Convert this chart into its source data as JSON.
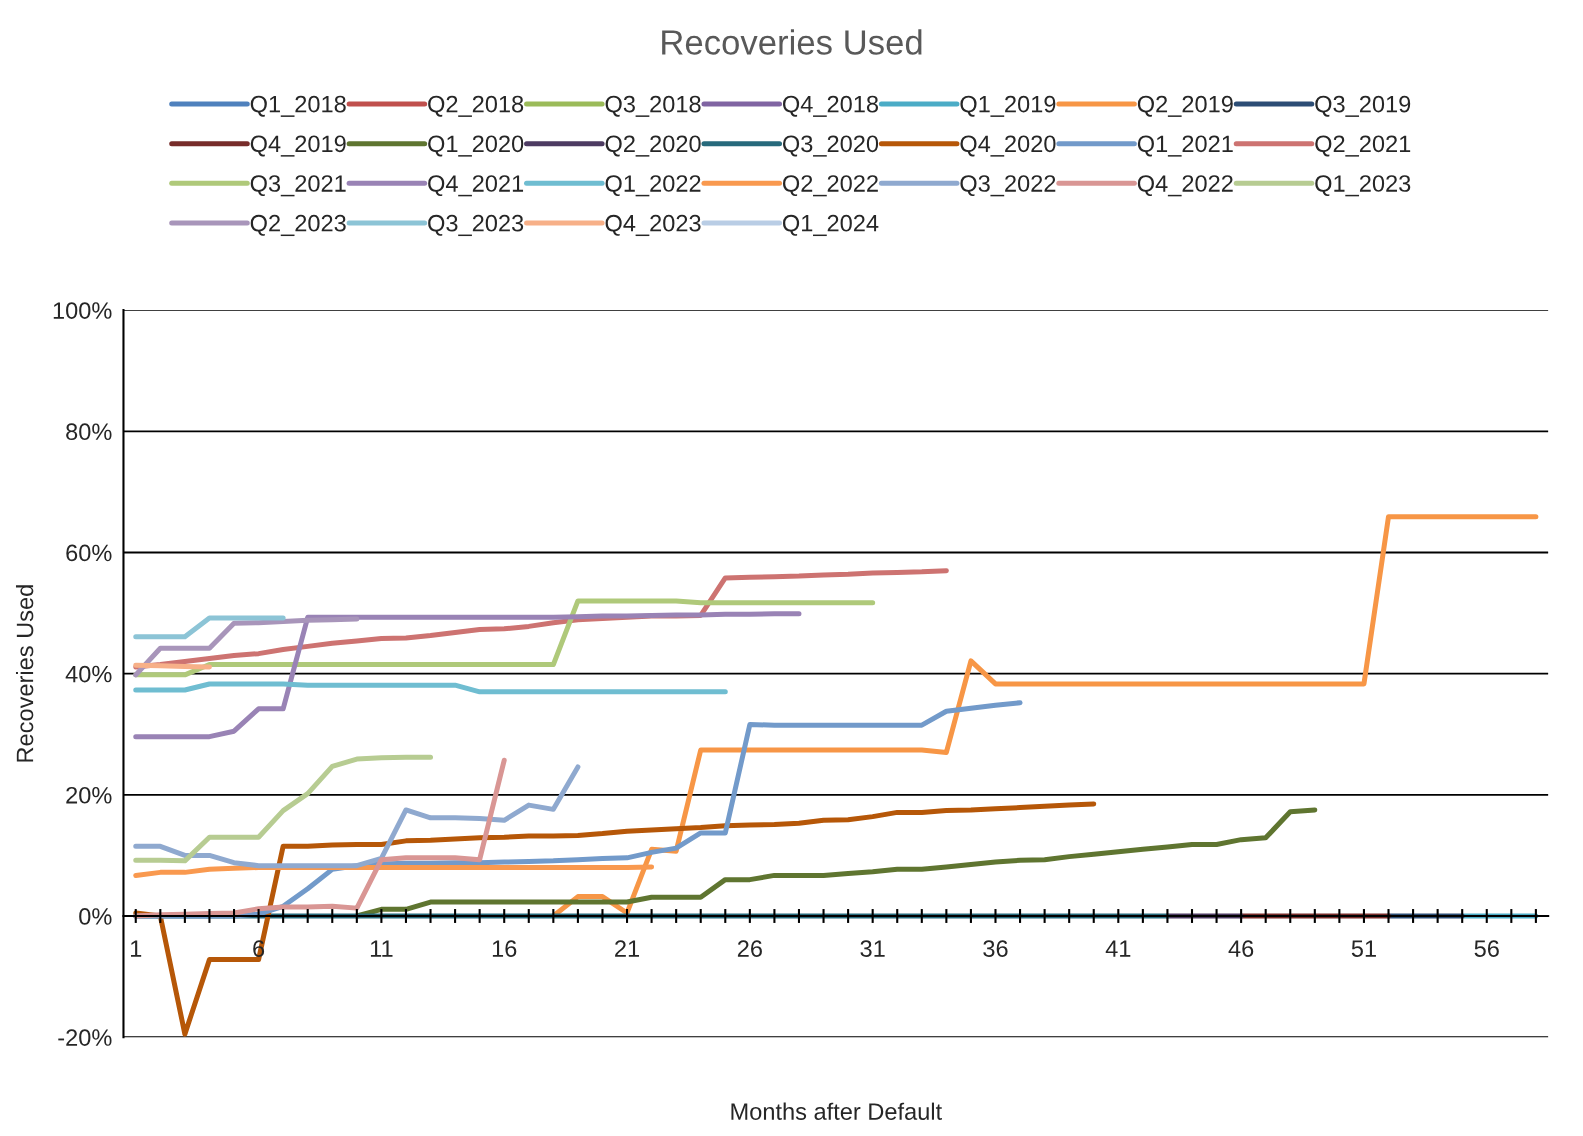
{
  "chart_data": {
    "type": "line",
    "title": "Recoveries Used",
    "xlabel": "Months after Default",
    "ylabel": "Recoveries Used",
    "x": [
      1,
      2,
      3,
      4,
      5,
      6,
      7,
      8,
      9,
      10,
      11,
      12,
      13,
      14,
      15,
      16,
      17,
      18,
      19,
      20,
      21,
      22,
      23,
      24,
      25,
      26,
      27,
      28,
      29,
      30,
      31,
      32,
      33,
      34,
      35,
      36,
      37,
      38,
      39,
      40,
      41,
      42,
      43,
      44,
      45,
      46,
      47,
      48,
      49,
      50,
      51,
      52,
      53,
      54,
      55,
      56,
      57,
      58
    ],
    "xlim": [
      0.5,
      58.5
    ],
    "xticks": [
      1,
      {
        "value": 2,
        "label": null
      },
      {
        "value": 3,
        "label": null
      },
      {
        "value": 4,
        "label": null
      },
      {
        "value": 5,
        "label": null
      },
      6,
      {
        "value": 7,
        "label": null
      },
      {
        "value": 8,
        "label": null
      },
      {
        "value": 9,
        "label": null
      },
      {
        "value": 10,
        "label": null
      },
      11,
      {
        "value": 12,
        "label": null
      },
      {
        "value": 13,
        "label": null
      },
      {
        "value": 14,
        "label": null
      },
      {
        "value": 15,
        "label": null
      },
      16,
      {
        "value": 17,
        "label": null
      },
      {
        "value": 18,
        "label": null
      },
      {
        "value": 19,
        "label": null
      },
      {
        "value": 20,
        "label": null
      },
      21,
      {
        "value": 22,
        "label": null
      },
      {
        "value": 23,
        "label": null
      },
      {
        "value": 24,
        "label": null
      },
      {
        "value": 25,
        "label": null
      },
      26,
      {
        "value": 27,
        "label": null
      },
      {
        "value": 28,
        "label": null
      },
      {
        "value": 29,
        "label": null
      },
      {
        "value": 30,
        "label": null
      },
      31,
      {
        "value": 32,
        "label": null
      },
      {
        "value": 33,
        "label": null
      },
      {
        "value": 34,
        "label": null
      },
      {
        "value": 35,
        "label": null
      },
      36,
      {
        "value": 37,
        "label": null
      },
      {
        "value": 38,
        "label": null
      },
      {
        "value": 39,
        "label": null
      },
      {
        "value": 40,
        "label": null
      },
      41,
      {
        "value": 42,
        "label": null
      },
      {
        "value": 43,
        "label": null
      },
      {
        "value": 44,
        "label": null
      },
      {
        "value": 45,
        "label": null
      },
      46,
      {
        "value": 47,
        "label": null
      },
      {
        "value": 48,
        "label": null
      },
      {
        "value": 49,
        "label": null
      },
      {
        "value": 50,
        "label": null
      },
      51,
      {
        "value": 52,
        "label": null
      },
      {
        "value": 53,
        "label": null
      },
      {
        "value": 54,
        "label": null
      },
      {
        "value": 55,
        "label": null
      },
      56,
      {
        "value": 57,
        "label": null
      },
      {
        "value": 58,
        "label": null
      }
    ],
    "ylim": [
      -20,
      100
    ],
    "yticks": [
      {
        "value": -20,
        "label": "-20%"
      },
      {
        "value": 0,
        "label": "0%"
      },
      {
        "value": 20,
        "label": "20%"
      },
      {
        "value": 40,
        "label": "40%"
      },
      {
        "value": 60,
        "label": "60%"
      },
      {
        "value": 80,
        "label": "80%"
      },
      {
        "value": 100,
        "label": "100%"
      }
    ],
    "grid": "y",
    "legend": "top",
    "marker": "none",
    "line_style": "solid",
    "series": [
      {
        "name": "Q1_2018",
        "color": "#4f81bd",
        "values": [
          null,
          null,
          null,
          null,
          null,
          null,
          null,
          null,
          null,
          null,
          null,
          null,
          null,
          null,
          null,
          null,
          null,
          null,
          null,
          null,
          null,
          null,
          null,
          null,
          null,
          null,
          null,
          null,
          null,
          null,
          null,
          null,
          null,
          null,
          null,
          null,
          null,
          null,
          null,
          null,
          null,
          null,
          null,
          null,
          null,
          null,
          null,
          null,
          null,
          null,
          null,
          null,
          null,
          null,
          null,
          null,
          null,
          null
        ]
      },
      {
        "name": "Q2_2018",
        "color": "#c0504d",
        "values": [
          null,
          null,
          null,
          null,
          null,
          null,
          null,
          null,
          null,
          null,
          null,
          null,
          null,
          null,
          null,
          null,
          null,
          null,
          null,
          null,
          null,
          null,
          null,
          null,
          null,
          null,
          null,
          null,
          null,
          null,
          null,
          null,
          null,
          null,
          null,
          null,
          null,
          null,
          null,
          null,
          null,
          null,
          null,
          null,
          null,
          null,
          null,
          null,
          null,
          null,
          null,
          null,
          null,
          null,
          null,
          null,
          null,
          null
        ]
      },
      {
        "name": "Q3_2018",
        "color": "#9bbb59",
        "values": [
          null,
          null,
          null,
          null,
          null,
          null,
          null,
          null,
          null,
          null,
          null,
          null,
          null,
          null,
          null,
          null,
          null,
          null,
          null,
          null,
          null,
          null,
          null,
          null,
          null,
          null,
          null,
          null,
          null,
          null,
          null,
          null,
          null,
          null,
          null,
          null,
          null,
          null,
          null,
          null,
          null,
          null,
          null,
          null,
          null,
          null,
          null,
          null,
          null,
          null,
          null,
          null,
          null,
          null,
          null,
          null,
          null,
          null
        ]
      },
      {
        "name": "Q4_2018",
        "color": "#8064a2",
        "values": [
          null,
          null,
          null,
          null,
          null,
          null,
          null,
          null,
          null,
          null,
          null,
          null,
          null,
          null,
          null,
          null,
          null,
          null,
          null,
          null,
          null,
          null,
          null,
          null,
          null,
          null,
          null,
          null,
          null,
          null,
          null,
          null,
          null,
          null,
          null,
          null,
          null,
          null,
          null,
          null,
          null,
          null,
          null,
          null,
          null,
          null,
          null,
          null,
          null,
          null,
          null,
          null,
          null,
          null,
          null,
          null,
          null,
          null
        ]
      },
      {
        "name": "Q1_2019",
        "color": "#4bacc6",
        "values": [
          null,
          null,
          null,
          null,
          null,
          null,
          null,
          null,
          null,
          null,
          null,
          null,
          null,
          null,
          null,
          null,
          null,
          null,
          null,
          null,
          null,
          null,
          null,
          null,
          null,
          null,
          null,
          null,
          null,
          null,
          null,
          null,
          null,
          null,
          null,
          null,
          null,
          null,
          null,
          null,
          null,
          null,
          null,
          null,
          null,
          null,
          null,
          null,
          null,
          null,
          null,
          null,
          null,
          null,
          0,
          0,
          0,
          0
        ]
      },
      {
        "name": "Q2_2019",
        "color": "#f79646",
        "values": [
          null,
          null,
          null,
          null,
          null,
          null,
          null,
          null,
          null,
          null,
          null,
          null,
          null,
          null,
          null,
          null,
          null,
          0,
          3.2,
          3.2,
          0.5,
          11,
          10.7,
          27.4,
          27.4,
          27.4,
          27.4,
          27.4,
          27.4,
          27.4,
          27.4,
          27.4,
          27.4,
          27.0,
          42.1,
          38.3,
          38.3,
          38.3,
          38.3,
          38.3,
          38.3,
          38.3,
          38.3,
          38.3,
          38.3,
          38.3,
          38.3,
          38.3,
          38.3,
          38.3,
          38.3,
          65.9,
          65.9,
          65.9,
          65.9,
          65.9,
          65.9,
          65.9
        ]
      },
      {
        "name": "Q3_2019",
        "color": "#2c4d75",
        "values": [
          null,
          null,
          null,
          null,
          null,
          null,
          null,
          null,
          null,
          null,
          null,
          null,
          null,
          null,
          null,
          null,
          null,
          null,
          null,
          null,
          null,
          null,
          null,
          null,
          null,
          null,
          null,
          null,
          null,
          null,
          null,
          null,
          null,
          null,
          null,
          null,
          null,
          null,
          null,
          null,
          null,
          null,
          null,
          null,
          null,
          null,
          null,
          null,
          null,
          null,
          null,
          0,
          0,
          0,
          0,
          null,
          null,
          null
        ]
      },
      {
        "name": "Q4_2019",
        "color": "#772c2a",
        "values": [
          null,
          null,
          null,
          null,
          null,
          null,
          null,
          null,
          null,
          null,
          null,
          null,
          null,
          null,
          null,
          null,
          null,
          null,
          null,
          null,
          null,
          null,
          null,
          null,
          null,
          null,
          null,
          null,
          null,
          null,
          null,
          null,
          null,
          null,
          null,
          null,
          null,
          null,
          null,
          null,
          null,
          null,
          null,
          null,
          null,
          0,
          0,
          0,
          0,
          0,
          0,
          0,
          null,
          null,
          null,
          null,
          null,
          null
        ]
      },
      {
        "name": "Q1_2020",
        "color": "#5f7530",
        "values": [
          null,
          null,
          null,
          null,
          null,
          null,
          null,
          null,
          null,
          0,
          1.1,
          1.1,
          2.3,
          2.3,
          2.3,
          2.3,
          2.3,
          2.3,
          2.3,
          2.3,
          2.3,
          3.1,
          3.1,
          3.1,
          6.0,
          6.0,
          6.7,
          6.7,
          6.7,
          7.0,
          7.3,
          7.7,
          7.7,
          8.1,
          8.5,
          8.9,
          9.2,
          9.3,
          9.8,
          10.2,
          10.6,
          11.0,
          11.4,
          11.8,
          11.8,
          12.6,
          12.9,
          17.2,
          17.5,
          null,
          null,
          null,
          null,
          null,
          null,
          null,
          null,
          null
        ]
      },
      {
        "name": "Q2_2020",
        "color": "#4d3b62",
        "values": [
          null,
          null,
          null,
          null,
          null,
          null,
          null,
          null,
          null,
          null,
          null,
          null,
          null,
          null,
          null,
          null,
          null,
          null,
          null,
          null,
          null,
          null,
          null,
          null,
          null,
          null,
          null,
          null,
          null,
          null,
          null,
          null,
          null,
          null,
          null,
          null,
          null,
          null,
          null,
          null,
          null,
          null,
          0,
          0,
          0,
          0,
          null,
          null,
          null,
          null,
          null,
          null,
          null,
          null,
          null,
          null,
          null,
          null
        ]
      },
      {
        "name": "Q3_2020",
        "color": "#276a7c",
        "values": [
          0,
          0,
          0,
          0,
          0,
          0,
          0,
          0,
          0,
          0,
          0,
          0,
          0,
          0,
          0,
          0,
          0,
          0,
          0,
          0,
          0,
          0,
          0,
          0,
          0,
          0,
          0,
          0,
          0,
          0,
          0,
          0,
          0,
          0,
          0,
          0,
          0,
          0,
          0,
          0,
          0,
          0,
          0,
          null,
          null,
          null,
          null,
          null,
          null,
          null,
          null,
          null,
          null,
          null,
          null,
          null,
          null,
          null
        ]
      },
      {
        "name": "Q4_2020",
        "color": "#b65708",
        "values": [
          0.5,
          0,
          -19.5,
          -7.2,
          -7.2,
          -7.2,
          11.5,
          11.5,
          11.7,
          11.8,
          11.8,
          12.4,
          12.5,
          12.7,
          12.9,
          13.0,
          13.2,
          13.2,
          13.3,
          13.6,
          14.0,
          14.2,
          14.4,
          14.6,
          14.9,
          15.0,
          15.1,
          15.3,
          15.8,
          15.9,
          16.4,
          17.1,
          17.1,
          17.4,
          17.5,
          17.7,
          17.9,
          18.1,
          18.3,
          18.5,
          null,
          null,
          null,
          null,
          null,
          null,
          null,
          null,
          null,
          null,
          null,
          null,
          null,
          null,
          null,
          null,
          null,
          null
        ]
      },
      {
        "name": "Q1_2021",
        "color": "#729aca",
        "values": [
          0,
          0,
          0,
          0,
          0,
          0.3,
          1.6,
          4.5,
          7.7,
          8.3,
          8.6,
          8.7,
          8.7,
          8.8,
          8.8,
          8.9,
          9.0,
          9.1,
          9.3,
          9.5,
          9.6,
          10.5,
          11.2,
          13.7,
          13.7,
          31.6,
          31.5,
          31.5,
          31.5,
          31.5,
          31.5,
          31.5,
          31.5,
          33.8,
          34.3,
          34.8,
          35.2,
          null,
          null,
          null,
          null,
          null,
          null,
          null,
          null,
          null,
          null,
          null,
          null,
          null,
          null,
          null,
          null,
          null,
          null,
          null,
          null,
          null
        ]
      },
      {
        "name": "Q2_2021",
        "color": "#cd7371",
        "values": [
          41.1,
          41.5,
          42.0,
          42.5,
          43.0,
          43.3,
          44.0,
          44.5,
          45.0,
          45.4,
          45.8,
          45.9,
          46.3,
          46.8,
          47.3,
          47.4,
          47.8,
          48.4,
          48.9,
          49.1,
          49.3,
          49.5,
          49.5,
          49.6,
          55.8,
          55.9,
          56.0,
          56.1,
          56.3,
          56.4,
          56.6,
          56.7,
          56.8,
          57.0,
          null,
          null,
          null,
          null,
          null,
          null,
          null,
          null,
          null,
          null,
          null,
          null,
          null,
          null,
          null,
          null,
          null,
          null,
          null,
          null,
          null,
          null,
          null,
          null
        ]
      },
      {
        "name": "Q3_2021",
        "color": "#afc97a",
        "values": [
          39.8,
          39.8,
          39.8,
          41.5,
          41.5,
          41.5,
          41.5,
          41.5,
          41.5,
          41.5,
          41.5,
          41.5,
          41.5,
          41.5,
          41.5,
          41.5,
          41.5,
          41.5,
          52.0,
          52.0,
          52.0,
          52.0,
          52.0,
          51.7,
          51.7,
          51.7,
          51.7,
          51.7,
          51.7,
          51.7,
          51.7,
          null,
          null,
          null,
          null,
          null,
          null,
          null,
          null,
          null,
          null,
          null,
          null,
          null,
          null,
          null,
          null,
          null,
          null,
          null,
          null,
          null,
          null,
          null,
          null,
          null,
          null,
          null
        ]
      },
      {
        "name": "Q4_2021",
        "color": "#9983b5",
        "values": [
          29.6,
          29.6,
          29.6,
          29.6,
          30.5,
          34.2,
          34.2,
          49.3,
          49.3,
          49.3,
          49.3,
          49.3,
          49.3,
          49.3,
          49.3,
          49.3,
          49.3,
          49.3,
          49.4,
          49.5,
          49.5,
          49.6,
          49.7,
          49.7,
          49.8,
          49.8,
          49.9,
          49.9,
          null,
          null,
          null,
          null,
          null,
          null,
          null,
          null,
          null,
          null,
          null,
          null,
          null,
          null,
          null,
          null,
          null,
          null,
          null,
          null,
          null,
          null,
          null,
          null,
          null,
          null,
          null,
          null,
          null,
          null
        ]
      },
      {
        "name": "Q1_2022",
        "color": "#6fbdd1",
        "values": [
          37.3,
          37.3,
          37.3,
          38.3,
          38.3,
          38.3,
          38.3,
          38.1,
          38.1,
          38.1,
          38.1,
          38.1,
          38.1,
          38.1,
          37.0,
          37.0,
          37.0,
          37.0,
          37.0,
          37.0,
          37.0,
          37.0,
          37.0,
          37.0,
          37.0,
          null,
          null,
          null,
          null,
          null,
          null,
          null,
          null,
          null,
          null,
          null,
          null,
          null,
          null,
          null,
          null,
          null,
          null,
          null,
          null,
          null,
          null,
          null,
          null,
          null,
          null,
          null,
          null,
          null,
          null,
          null,
          null,
          null
        ]
      },
      {
        "name": "Q2_2022",
        "color": "#f9994f",
        "values": [
          6.7,
          7.2,
          7.2,
          7.7,
          7.9,
          8.0,
          8.0,
          8.0,
          8.0,
          8.0,
          8.0,
          8.0,
          8.0,
          8.0,
          8.0,
          8.0,
          8.0,
          8.0,
          8.0,
          8.0,
          8.0,
          8.1,
          null,
          null,
          null,
          null,
          null,
          null,
          null,
          null,
          null,
          null,
          null,
          null,
          null,
          null,
          null,
          null,
          null,
          null,
          null,
          null,
          null,
          null,
          null,
          null,
          null,
          null,
          null,
          null,
          null,
          null,
          null,
          null,
          null,
          null,
          null,
          null
        ]
      },
      {
        "name": "Q3_2022",
        "color": "#8fa9cf",
        "values": [
          11.5,
          11.5,
          10.0,
          10.0,
          8.8,
          8.3,
          8.3,
          8.3,
          8.3,
          8.3,
          9.5,
          17.5,
          16.2,
          16.2,
          16.1,
          15.8,
          18.3,
          17.6,
          24.6,
          null,
          null,
          null,
          null,
          null,
          null,
          null,
          null,
          null,
          null,
          null,
          null,
          null,
          null,
          null,
          null,
          null,
          null,
          null,
          null,
          null,
          null,
          null,
          null,
          null,
          null,
          null,
          null,
          null,
          null,
          null,
          null,
          null,
          null,
          null,
          null,
          null,
          null,
          null
        ]
      },
      {
        "name": "Q4_2022",
        "color": "#d99694",
        "values": [
          0,
          0.2,
          0.3,
          0.4,
          0.5,
          1.2,
          1.5,
          1.5,
          1.6,
          1.3,
          9.3,
          9.6,
          9.6,
          9.6,
          9.3,
          25.7,
          null,
          null,
          null,
          null,
          null,
          null,
          null,
          null,
          null,
          null,
          null,
          null,
          null,
          null,
          null,
          null,
          null,
          null,
          null,
          null,
          null,
          null,
          null,
          null,
          null,
          null,
          null,
          null,
          null,
          null,
          null,
          null,
          null,
          null,
          null,
          null,
          null,
          null,
          null,
          null,
          null,
          null
        ]
      },
      {
        "name": "Q1_2023",
        "color": "#b7cc92",
        "values": [
          9.2,
          9.2,
          9.1,
          13.0,
          13.0,
          13.0,
          17.4,
          20.2,
          24.7,
          25.9,
          26.1,
          26.2,
          26.2,
          null,
          null,
          null,
          null,
          null,
          null,
          null,
          null,
          null,
          null,
          null,
          null,
          null,
          null,
          null,
          null,
          null,
          null,
          null,
          null,
          null,
          null,
          null,
          null,
          null,
          null,
          null,
          null,
          null,
          null,
          null,
          null,
          null,
          null,
          null,
          null,
          null,
          null,
          null,
          null,
          null,
          null,
          null,
          null,
          null
        ]
      },
      {
        "name": "Q2_2023",
        "color": "#a895ba",
        "values": [
          39.8,
          44.2,
          44.2,
          44.2,
          48.3,
          48.4,
          48.6,
          48.8,
          48.9,
          49.0,
          null,
          null,
          null,
          null,
          null,
          null,
          null,
          null,
          null,
          null,
          null,
          null,
          null,
          null,
          null,
          null,
          null,
          null,
          null,
          null,
          null,
          null,
          null,
          null,
          null,
          null,
          null,
          null,
          null,
          null,
          null,
          null,
          null,
          null,
          null,
          null,
          null,
          null,
          null,
          null,
          null,
          null,
          null,
          null,
          null,
          null,
          null,
          null
        ]
      },
      {
        "name": "Q3_2023",
        "color": "#8cc4d6",
        "values": [
          46.1,
          46.1,
          46.1,
          49.2,
          49.2,
          49.2,
          49.2,
          null,
          null,
          null,
          null,
          null,
          null,
          null,
          null,
          null,
          null,
          null,
          null,
          null,
          null,
          null,
          null,
          null,
          null,
          null,
          null,
          null,
          null,
          null,
          null,
          null,
          null,
          null,
          null,
          null,
          null,
          null,
          null,
          null,
          null,
          null,
          null,
          null,
          null,
          null,
          null,
          null,
          null,
          null,
          null,
          null,
          null,
          null,
          null,
          null,
          null,
          null
        ]
      },
      {
        "name": "Q4_2023",
        "color": "#f7b088",
        "values": [
          41.4,
          41.3,
          41.2,
          41.1,
          null,
          null,
          null,
          null,
          null,
          null,
          null,
          null,
          null,
          null,
          null,
          null,
          null,
          null,
          null,
          null,
          null,
          null,
          null,
          null,
          null,
          null,
          null,
          null,
          null,
          null,
          null,
          null,
          null,
          null,
          null,
          null,
          null,
          null,
          null,
          null,
          null,
          null,
          null,
          null,
          null,
          null,
          null,
          null,
          null,
          null,
          null,
          null,
          null,
          null,
          null,
          null,
          null,
          null
        ]
      },
      {
        "name": "Q1_2024",
        "color": "#b9cde5",
        "values": [
          null,
          null,
          null,
          null,
          null,
          null,
          null,
          null,
          null,
          null,
          null,
          null,
          null,
          null,
          null,
          null,
          null,
          null,
          null,
          null,
          null,
          null,
          null,
          null,
          null,
          null,
          null,
          null,
          null,
          null,
          null,
          null,
          null,
          null,
          null,
          null,
          null,
          null,
          null,
          null,
          null,
          null,
          null,
          null,
          null,
          null,
          null,
          null,
          null,
          null,
          null,
          null,
          null,
          null,
          null,
          null,
          null,
          null
        ]
      }
    ]
  }
}
